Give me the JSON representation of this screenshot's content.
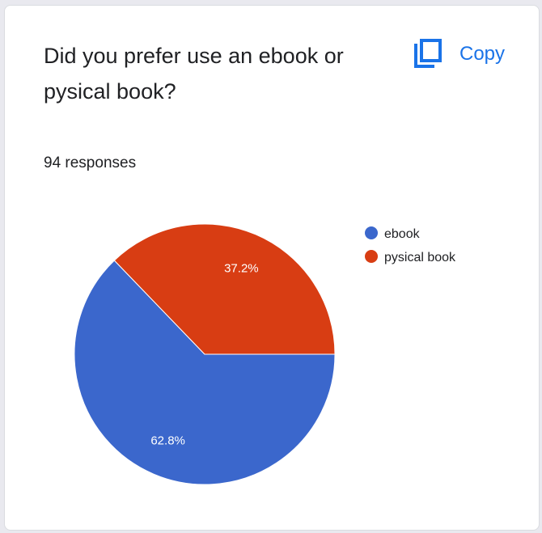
{
  "card": {
    "question": "Did you prefer use an ebook or pysical book?",
    "copy_label": "Copy",
    "copy_icon": "copy-icon",
    "responses_text": "94 responses"
  },
  "colors": {
    "accent": "#1a73e8",
    "ebook": "#3b67cc",
    "pysical_book": "#d83d13"
  },
  "chart_data": {
    "type": "pie",
    "categories": [
      "ebook",
      "pysical book"
    ],
    "values": [
      62.8,
      37.2
    ],
    "labels": [
      "62.8%",
      "37.2%"
    ],
    "colors": [
      "#3b67cc",
      "#d83d13"
    ],
    "legend": "right",
    "total_responses": 94
  }
}
